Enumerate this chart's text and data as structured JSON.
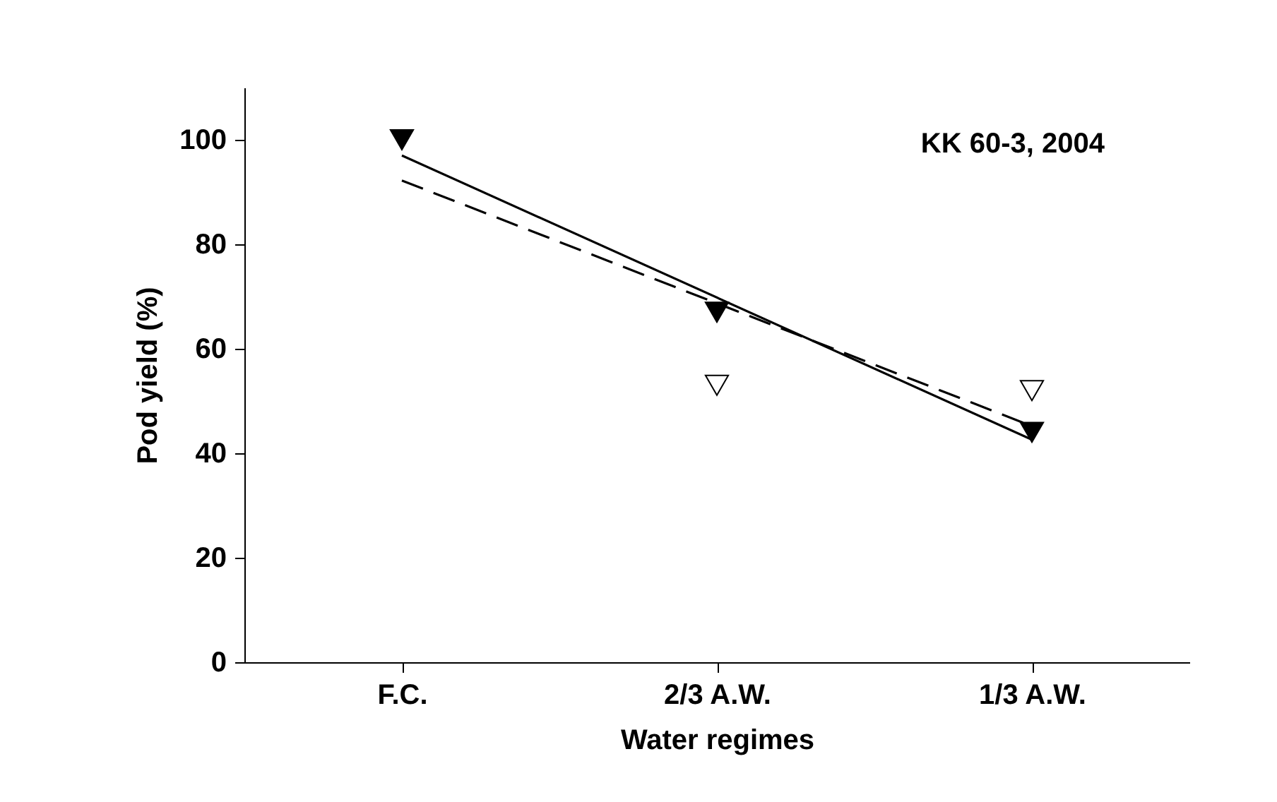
{
  "chart_data": {
    "type": "scatter",
    "xlabel": "Water regimes",
    "ylabel": "Pod yield (%)",
    "annotations": [
      "KK 60-3, 2004"
    ],
    "categories": [
      "F.C.",
      "2/3 A.W.",
      "1/3 A.W."
    ],
    "ylim": [
      0,
      110
    ],
    "yticks": [
      0,
      20,
      40,
      60,
      80,
      100
    ],
    "grid": false,
    "series": [
      {
        "marker": "triangle",
        "color": "#000000",
        "x": [
          "F.C.",
          "2/3 A.W.",
          "1/3 A.W."
        ],
        "values": [
          100,
          67,
          44
        ]
      },
      {
        "marker": "triangle",
        "color": "#ffffff",
        "x": [
          "2/3 A.W.",
          "1/3 A.W."
        ],
        "values": [
          53,
          52
        ]
      },
      {
        "type": "line",
        "line_style": "solid",
        "marker": "none",
        "color": "#000000",
        "x": [
          "F.C.",
          "1/3 A.W."
        ],
        "values": [
          97,
          42.6
        ]
      },
      {
        "type": "line",
        "line_style": "dashed",
        "marker": "none",
        "color": "#000000",
        "x": [
          "F.C.",
          "1/3 A.W."
        ],
        "values": [
          92.2,
          45.2
        ]
      }
    ]
  }
}
